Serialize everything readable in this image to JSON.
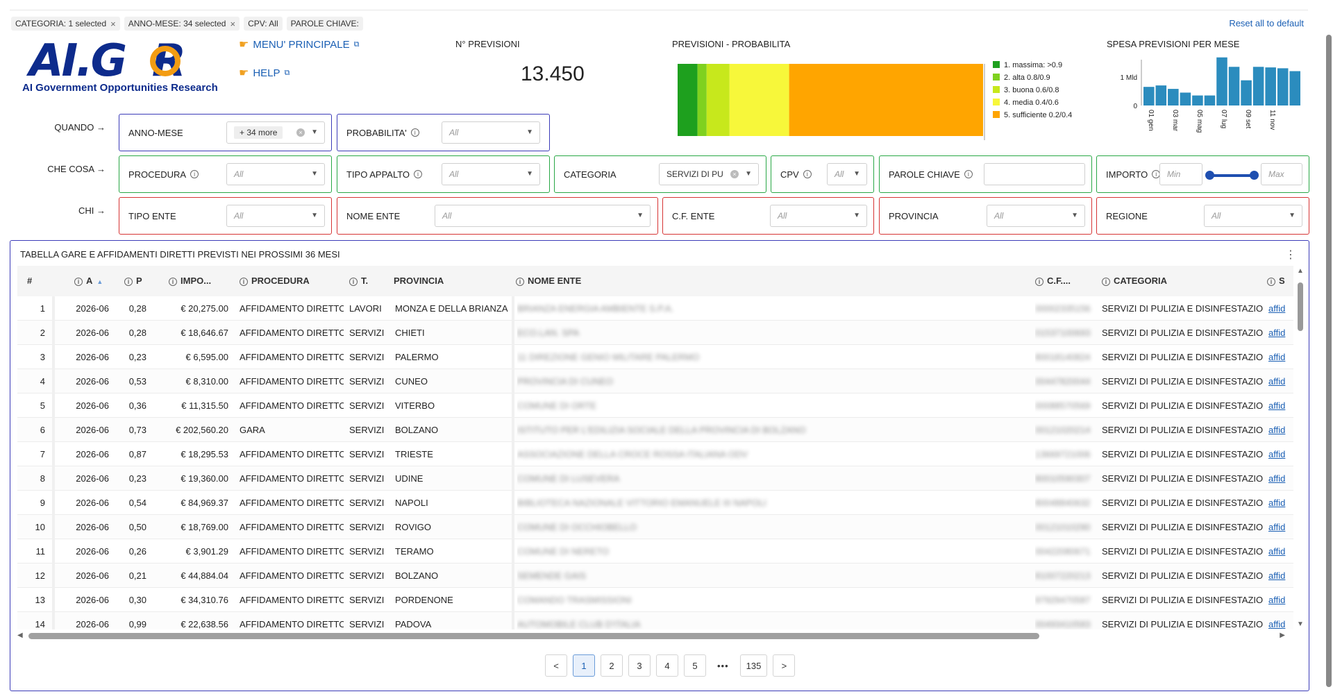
{
  "chips": [
    {
      "label": "CATEGORIA: 1 selected",
      "closable": true
    },
    {
      "label": "ANNO-MESE: 34 selected",
      "closable": true
    },
    {
      "label": "CPV: All",
      "closable": false
    },
    {
      "label": "PAROLE CHIAVE:",
      "closable": false
    }
  ],
  "reset_label": "Reset all to default",
  "logo": {
    "main": "AI.G R",
    "subtitle": "AI Government Opportunities Research"
  },
  "links": {
    "menu": "MENU' PRINCIPALE",
    "help": "HELP"
  },
  "n_previsioni": {
    "label": "N° PREVISIONI",
    "value": "13.450"
  },
  "prob_chart": {
    "title": "PREVISIONI - PROBABILITA",
    "segments": [
      {
        "name": "1. massima: >0.9",
        "share": 0.065,
        "color": "#1ea01e"
      },
      {
        "name": "2. alta 0.8/0.9",
        "share": 0.03,
        "color": "#7fd11f"
      },
      {
        "name": "3. buona 0.6/0.8",
        "share": 0.075,
        "color": "#c7e81c"
      },
      {
        "name": "4. media 0.4/0.6",
        "share": 0.195,
        "color": "#f7f73a"
      },
      {
        "name": "5. sufficiente 0.2/0.4",
        "share": 0.635,
        "color": "#ffa500"
      }
    ]
  },
  "chart_data": {
    "type": "bar",
    "title": "SPESA PREVISIONI PER MESE",
    "ytick_labels": [
      "1 Mld",
      "0"
    ],
    "ylim": [
      0,
      1.6
    ],
    "xtick_labels": [
      "01 gen",
      "03 mar",
      "05 mag",
      "07 lug",
      "09 set",
      "11 nov"
    ],
    "values": [
      0.65,
      0.7,
      0.58,
      0.45,
      0.35,
      0.35,
      1.68,
      1.35,
      0.88,
      1.35,
      1.33,
      1.3,
      1.2
    ],
    "color": "#2b8cbe"
  },
  "row_labels": {
    "quando": "QUANDO →",
    "che_cosa": "CHE COSA →",
    "chi": "CHI →"
  },
  "filters": {
    "anno_mese": {
      "label": "ANNO-MESE",
      "value": "+ 34 more"
    },
    "probabilita": {
      "label": "PROBABILITA'",
      "value": "All"
    },
    "procedura": {
      "label": "PROCEDURA",
      "value": "All"
    },
    "tipo_appalto": {
      "label": "TIPO APPALTO",
      "value": "All"
    },
    "categoria": {
      "label": "CATEGORIA",
      "value": "SERVIZI DI PU"
    },
    "cpv": {
      "label": "CPV",
      "value": "All"
    },
    "parole_chiave": {
      "label": "PAROLE CHIAVE",
      "value": ""
    },
    "importo": {
      "label": "IMPORTO",
      "min_placeholder": "Min",
      "max_placeholder": "Max"
    },
    "tipo_ente": {
      "label": "TIPO ENTE",
      "value": "All"
    },
    "nome_ente": {
      "label": "NOME ENTE",
      "value": "All"
    },
    "cf_ente": {
      "label": "C.F. ENTE",
      "value": "All"
    },
    "provincia": {
      "label": "PROVINCIA",
      "value": "All"
    },
    "regione": {
      "label": "REGIONE",
      "value": "All"
    }
  },
  "table": {
    "title": "TABELLA GARE E AFFIDAMENTI DIRETTI PREVISTI NEI PROSSIMI 36 MESI",
    "headers": {
      "num": "#",
      "anno": "A",
      "prob": "P",
      "importo": "IMPO...",
      "procedura": "PROCEDURA",
      "tipo": "T.",
      "provincia": "PROVINCIA",
      "nome_ente": "NOME ENTE",
      "cf": "C.F....",
      "categoria": "CATEGORIA",
      "s": "S"
    },
    "rows": [
      {
        "n": "1",
        "anno": "2026-06",
        "p": "0,28",
        "imp": "€ 20,275.00",
        "proc": "AFFIDAMENTO DIRETTO",
        "t": "LAVORI",
        "prov": "MONZA E DELLA BRIANZA",
        "ente": "BRIANZA ENERGIA AMBIENTE S.P.A.",
        "cf": "00002335156",
        "cat": "SERVIZI DI PULIZIA E DISINFESTAZIONE",
        "s": "affid"
      },
      {
        "n": "2",
        "anno": "2026-06",
        "p": "0,28",
        "imp": "€ 18,646.67",
        "proc": "AFFIDAMENTO DIRETTO",
        "t": "SERVIZI",
        "prov": "CHIETI",
        "ente": "ECO.LAN. SPA",
        "cf": "01537100693",
        "cat": "SERVIZI DI PULIZIA E DISINFESTAZIONE",
        "s": "affid"
      },
      {
        "n": "3",
        "anno": "2026-06",
        "p": "0,23",
        "imp": "€ 6,595.00",
        "proc": "AFFIDAMENTO DIRETTO",
        "t": "SERVIZI",
        "prov": "PALERMO",
        "ente": "11 DIREZIONE GENIO MILITARE PALERMO",
        "cf": "80018140824",
        "cat": "SERVIZI DI PULIZIA E DISINFESTAZIONE",
        "s": "affid"
      },
      {
        "n": "4",
        "anno": "2026-06",
        "p": "0,53",
        "imp": "€ 8,310.00",
        "proc": "AFFIDAMENTO DIRETTO",
        "t": "SERVIZI",
        "prov": "CUNEO",
        "ente": "PROVINCIA DI CUNEO",
        "cf": "00447820044",
        "cat": "SERVIZI DI PULIZIA E DISINFESTAZIONE",
        "s": "affid"
      },
      {
        "n": "5",
        "anno": "2026-06",
        "p": "0,36",
        "imp": "€ 11,315.50",
        "proc": "AFFIDAMENTO DIRETTO",
        "t": "SERVIZI",
        "prov": "VITERBO",
        "ente": "COMUNE DI ORTE",
        "cf": "00088570569",
        "cat": "SERVIZI DI PULIZIA E DISINFESTAZIONE",
        "s": "affid"
      },
      {
        "n": "6",
        "anno": "2026-06",
        "p": "0,73",
        "imp": "€ 202,560.20",
        "proc": "GARA",
        "t": "SERVIZI",
        "prov": "BOLZANO",
        "ente": "ISTITUTO PER L'EDILIZIA SOCIALE DELLA PROVINCIA DI BOLZANO",
        "cf": "00121020214",
        "cat": "SERVIZI DI PULIZIA E DISINFESTAZIONE",
        "s": "affid"
      },
      {
        "n": "7",
        "anno": "2026-06",
        "p": "0,87",
        "imp": "€ 18,295.53",
        "proc": "AFFIDAMENTO DIRETTO",
        "t": "SERVIZI",
        "prov": "TRIESTE",
        "ente": "ASSOCIAZIONE DELLA CROCE ROSSA ITALIANA ODV",
        "cf": "13669721006",
        "cat": "SERVIZI DI PULIZIA E DISINFESTAZIONE",
        "s": "affid"
      },
      {
        "n": "8",
        "anno": "2026-06",
        "p": "0,23",
        "imp": "€ 19,360.00",
        "proc": "AFFIDAMENTO DIRETTO",
        "t": "SERVIZI",
        "prov": "UDINE",
        "ente": "COMUNE DI LUSEVERA",
        "cf": "80010590307",
        "cat": "SERVIZI DI PULIZIA E DISINFESTAZIONE",
        "s": "affid"
      },
      {
        "n": "9",
        "anno": "2026-06",
        "p": "0,54",
        "imp": "€ 84,969.37",
        "proc": "AFFIDAMENTO DIRETTO",
        "t": "SERVIZI",
        "prov": "NAPOLI",
        "ente": "BIBLIOTECA NAZIONALE VITTORIO EMANUELE III NAPOLI",
        "cf": "80048840632",
        "cat": "SERVIZI DI PULIZIA E DISINFESTAZIONE",
        "s": "affid"
      },
      {
        "n": "10",
        "anno": "2026-06",
        "p": "0,50",
        "imp": "€ 18,769.00",
        "proc": "AFFIDAMENTO DIRETTO",
        "t": "SERVIZI",
        "prov": "ROVIGO",
        "ente": "COMUNE DI OCCHIOBELLO",
        "cf": "00121010290",
        "cat": "SERVIZI DI PULIZIA E DISINFESTAZIONE",
        "s": "affid"
      },
      {
        "n": "11",
        "anno": "2026-06",
        "p": "0,26",
        "imp": "€ 3,901.29",
        "proc": "AFFIDAMENTO DIRETTO",
        "t": "SERVIZI",
        "prov": "TERAMO",
        "ente": "COMUNE DI NERETO",
        "cf": "00422080671",
        "cat": "SERVIZI DI PULIZIA E DISINFESTAZIONE",
        "s": "affid"
      },
      {
        "n": "12",
        "anno": "2026-06",
        "p": "0,21",
        "imp": "€ 44,884.04",
        "proc": "AFFIDAMENTO DIRETTO",
        "t": "SERVIZI",
        "prov": "BOLZANO",
        "ente": "SEMENDE GAIS",
        "cf": "81007220213",
        "cat": "SERVIZI DI PULIZIA E DISINFESTAZIONE",
        "s": "affid"
      },
      {
        "n": "13",
        "anno": "2026-06",
        "p": "0,30",
        "imp": "€ 34,310.76",
        "proc": "AFFIDAMENTO DIRETTO",
        "t": "SERVIZI",
        "prov": "PORDENONE",
        "ente": "COMANDO TRASMISSIONI",
        "cf": "97929470587",
        "cat": "SERVIZI DI PULIZIA E DISINFESTAZIONE",
        "s": "affid"
      },
      {
        "n": "14",
        "anno": "2026-06",
        "p": "0,99",
        "imp": "€ 22,638.56",
        "proc": "AFFIDAMENTO DIRETTO",
        "t": "SERVIZI",
        "prov": "PADOVA",
        "ente": "AUTOMOBILE CLUB D'ITALIA",
        "cf": "00493410583",
        "cat": "SERVIZI DI PULIZIA E DISINFESTAZIONE",
        "s": "affid"
      }
    ]
  },
  "pagination": {
    "prev": "<",
    "pages": [
      "1",
      "2",
      "3",
      "4",
      "5"
    ],
    "dots": "•••",
    "last": "135",
    "next": ">",
    "current": "1"
  }
}
